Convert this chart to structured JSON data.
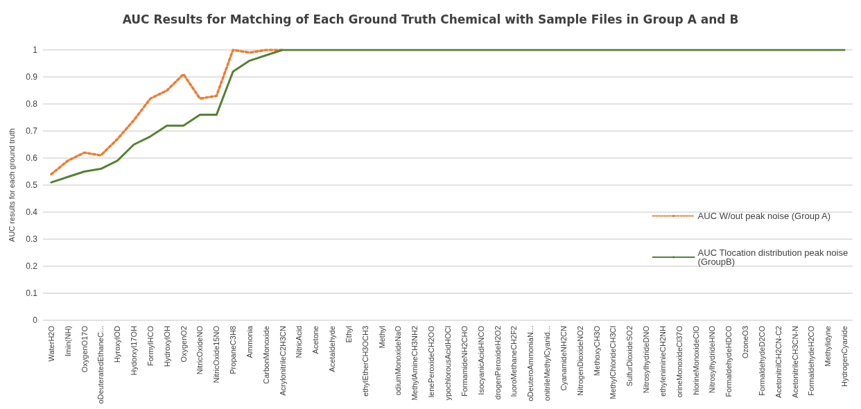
{
  "chart_data": {
    "type": "line",
    "title": "AUC Results for Matching of Each Ground Truth Chemical with Sample Files in Group A and B",
    "ylabel": "AUC results for each ground truth",
    "categories": [
      "WaterH2O",
      "Imin(NH)",
      "OxygenO17O",
      "oDeuteratedEthaneC...",
      "HyroxylOD",
      "Hydorxyl17OH",
      "FormylHCO",
      "HydroxylOH",
      "OxygenO2",
      "NitricOxideNO",
      "NitricOxide15NO",
      "PropaneC3H8",
      "Ammonia",
      "CarbonMonoxide",
      "AcrylonitrileC2H3CN",
      "NitricAcid",
      "Acetone",
      "Acetaldehyde",
      "Ethyl",
      "ethylEtherCH3OCH3",
      "Methyl",
      "odiumMonoxideNaO",
      "MethylAmineCH3NH2",
      "lenePeroxideCH2OO",
      "ypochlorousAcidHOCl",
      "FormamideNH2CHO",
      "IsocyanicAcidHNCO",
      "drogenPeroxideH2O2",
      "luoroMethaneCH2F2",
      "oDeuteroAmmoniaN...",
      "onitrileMethylCyanid...",
      "CyanamideNH2CN",
      "NitrogenDioxideNO2",
      "MethoxyCH3O",
      "MethylChlorideCH3Cl",
      "SulfurDioxideSO2",
      "NitrosylhydrideDNO",
      "ethyleniminieCH2NH",
      "orineMonoxideCl37O",
      "hlorineMonoxideClO",
      "NitrosylhydrideHNO",
      "FormaldehydeHDCO",
      "OzoneO3",
      "FormaldehydeD2CO",
      "AcetonitrilCH2CN-C2",
      "AcetonitrileCH3CN-N",
      "FormaldehydeH2CO",
      "Methylidyne",
      "HydrogenCyanide"
    ],
    "series": [
      {
        "name": "AUC W/out peak noise (Group A)",
        "color": "#ed7d31",
        "line_style": "dotted",
        "values": [
          0.54,
          0.59,
          0.62,
          0.61,
          0.67,
          0.74,
          0.82,
          0.85,
          0.91,
          0.82,
          0.83,
          1,
          0.99,
          1,
          1,
          null,
          null,
          null,
          null,
          null,
          null,
          null,
          null,
          null,
          null,
          null,
          null,
          null,
          null,
          null,
          null,
          null,
          null,
          null,
          null,
          null,
          null,
          null,
          null,
          null,
          null,
          null,
          null,
          null,
          null,
          null,
          null,
          null,
          null
        ]
      },
      {
        "name": "AUC Tlocation distribution peak noise (GroupB)",
        "color": "#548235",
        "line_style": "solid",
        "values": [
          0.51,
          0.53,
          0.55,
          0.56,
          0.59,
          0.65,
          0.68,
          0.72,
          0.72,
          0.76,
          0.76,
          0.92,
          0.96,
          0.98,
          1,
          1,
          1,
          1,
          1,
          1,
          1,
          1,
          1,
          1,
          1,
          1,
          1,
          1,
          1,
          1,
          1,
          1,
          1,
          1,
          1,
          1,
          1,
          1,
          1,
          1,
          1,
          1,
          1,
          1,
          1,
          1,
          1,
          1,
          1
        ]
      }
    ],
    "ylim": [
      0,
      1
    ],
    "yticks": [
      0,
      0.1,
      0.2,
      0.3,
      0.4,
      0.5,
      0.6,
      0.7,
      0.8,
      0.9,
      1
    ],
    "grid": "y",
    "legend": "right",
    "marker": "none"
  }
}
